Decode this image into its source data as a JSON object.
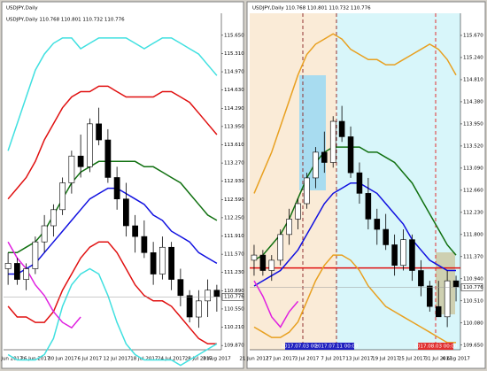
{
  "chart_data": [
    {
      "type": "candlestick",
      "title": "USDJPY,Daily",
      "info": "USDJPY,Daily  110.768 110.801 110.732 110.776",
      "categories": [
        "20 Jun 2017",
        null,
        null,
        "26 Jun 2017",
        null,
        null,
        "30 Jun 2017",
        null,
        null,
        "6 Jul 2017",
        null,
        null,
        "12 Jul 2017",
        null,
        null,
        "18 Jul 2017",
        null,
        null,
        "24 Jul 2017",
        null,
        null,
        "28 Jul 2017",
        null,
        "3 Aug 2017"
      ],
      "open": [
        111.3,
        111.4,
        111.1,
        111.3,
        111.8,
        112.1,
        112.4,
        112.9,
        113.4,
        113.2,
        114.0,
        113.7,
        113.0,
        112.6,
        112.1,
        111.9,
        111.6,
        111.2,
        111.7,
        111.1,
        110.8,
        110.4,
        110.7,
        110.9
      ],
      "high": [
        111.6,
        111.5,
        111.4,
        111.9,
        112.3,
        112.5,
        113.0,
        113.5,
        113.8,
        114.1,
        114.3,
        113.9,
        113.2,
        112.9,
        112.3,
        112.2,
        111.8,
        111.9,
        111.8,
        111.3,
        110.9,
        110.9,
        111.1,
        111.0
      ],
      "low": [
        111.0,
        111.0,
        110.9,
        111.2,
        111.6,
        111.9,
        112.3,
        112.7,
        113.0,
        113.1,
        113.6,
        112.9,
        112.4,
        111.9,
        111.6,
        111.5,
        111.0,
        111.1,
        110.9,
        110.6,
        110.3,
        110.2,
        110.4,
        110.5
      ],
      "close": [
        111.4,
        111.1,
        111.3,
        111.8,
        112.1,
        112.4,
        112.9,
        113.4,
        113.2,
        114.0,
        113.7,
        113.0,
        112.6,
        112.1,
        111.9,
        111.6,
        111.2,
        111.7,
        111.1,
        110.8,
        110.4,
        110.7,
        110.9,
        110.78
      ],
      "series": [
        {
          "color": "#40e0e0",
          "values": [
            113.5,
            114.0,
            114.5,
            115.0,
            115.3,
            115.5,
            115.6,
            115.6,
            115.4,
            115.5,
            115.6,
            115.6,
            115.6,
            115.6,
            115.5,
            115.4,
            115.5,
            115.6,
            115.6,
            115.5,
            115.4,
            115.3,
            115.1,
            114.9
          ]
        },
        {
          "color": "#e01010",
          "values": [
            112.6,
            112.8,
            113.0,
            113.3,
            113.7,
            114.0,
            114.3,
            114.5,
            114.6,
            114.6,
            114.7,
            114.7,
            114.6,
            114.5,
            114.5,
            114.5,
            114.5,
            114.6,
            114.6,
            114.5,
            114.4,
            114.2,
            114.0,
            113.8
          ]
        },
        {
          "color": "#107010",
          "values": [
            111.6,
            111.6,
            111.7,
            111.8,
            112.0,
            112.3,
            112.6,
            112.9,
            113.1,
            113.2,
            113.3,
            113.3,
            113.3,
            113.3,
            113.3,
            113.2,
            113.2,
            113.1,
            113.0,
            112.9,
            112.7,
            112.5,
            112.3,
            112.2
          ]
        },
        {
          "color": "#1010e0",
          "values": [
            111.2,
            111.2,
            111.3,
            111.4,
            111.6,
            111.8,
            112.0,
            112.2,
            112.4,
            112.6,
            112.7,
            112.8,
            112.8,
            112.7,
            112.6,
            112.5,
            112.3,
            112.2,
            112.0,
            111.9,
            111.8,
            111.6,
            111.5,
            111.4
          ]
        },
        {
          "color": "#e01010",
          "values": [
            110.6,
            110.4,
            110.4,
            110.3,
            110.3,
            110.5,
            110.9,
            111.2,
            111.5,
            111.7,
            111.8,
            111.8,
            111.6,
            111.3,
            111.0,
            110.8,
            110.7,
            110.7,
            110.6,
            110.4,
            110.2,
            110.0,
            109.9,
            109.9
          ]
        },
        {
          "color": "#40e0e0",
          "values": [
            109.7,
            109.6,
            109.6,
            109.6,
            109.7,
            110.0,
            110.6,
            111.0,
            111.2,
            111.3,
            111.2,
            110.8,
            110.3,
            109.9,
            109.7,
            109.6,
            109.6,
            109.6,
            109.6,
            109.5,
            109.6,
            109.7,
            109.8,
            109.9
          ]
        },
        {
          "color": "#e020e0",
          "values": [
            111.8,
            111.5,
            111.3,
            111.0,
            110.8,
            110.5,
            110.3,
            110.2,
            110.4,
            null,
            null,
            null,
            null,
            null,
            null,
            null,
            null,
            null,
            null,
            null,
            null,
            null,
            null,
            null
          ]
        }
      ],
      "ylim": [
        109.79,
        116.06
      ],
      "yticks": [
        {
          "value": 115.65,
          "label": "115.650"
        },
        {
          "value": 115.31,
          "label": "115.310"
        },
        {
          "value": 114.97,
          "label": "114.970"
        },
        {
          "value": 114.63,
          "label": "114.630"
        },
        {
          "value": 114.29,
          "label": "114.290"
        },
        {
          "value": 113.95,
          "label": "113.950"
        },
        {
          "value": 113.61,
          "label": "113.610"
        },
        {
          "value": 113.27,
          "label": "113.270"
        },
        {
          "value": 112.93,
          "label": "112.930"
        },
        {
          "value": 112.59,
          "label": "112.590"
        },
        {
          "value": 112.25,
          "label": "112.250"
        },
        {
          "value": 111.91,
          "label": "111.910"
        },
        {
          "value": 111.57,
          "label": "111.570"
        },
        {
          "value": 111.23,
          "label": "111.230"
        },
        {
          "value": 110.89,
          "label": "110.890"
        },
        {
          "value": 110.55,
          "label": "110.550"
        },
        {
          "value": 110.21,
          "label": "110.210"
        },
        {
          "value": 109.87,
          "label": "109.870"
        }
      ],
      "price_marker": 110.776
    },
    {
      "type": "candlestick",
      "title": "USDJPY,Daily  110.768 110.801 110.732 110.776",
      "categories": [
        "21 Jun 2017",
        null,
        null,
        "27 Jun 2017",
        null,
        null,
        "3 Jul 2017",
        null,
        null,
        "7 Jul 2017",
        null,
        null,
        "13 Jul 2017",
        null,
        null,
        "19 Jul 2017",
        null,
        null,
        "25 Jul 2017",
        null,
        null,
        "31 Jul 2017",
        null,
        "4 Aug 2017"
      ],
      "open": [
        111.3,
        111.4,
        111.1,
        111.3,
        111.8,
        112.1,
        112.4,
        112.9,
        113.4,
        113.2,
        114.0,
        113.7,
        113.0,
        112.6,
        112.1,
        111.9,
        111.6,
        111.2,
        111.7,
        111.1,
        110.8,
        110.4,
        110.2,
        110.9
      ],
      "high": [
        111.6,
        111.5,
        111.4,
        111.9,
        112.3,
        112.5,
        113.0,
        113.5,
        113.8,
        114.1,
        114.3,
        113.9,
        113.2,
        112.9,
        112.3,
        112.2,
        111.8,
        111.9,
        111.8,
        111.3,
        110.9,
        110.9,
        111.1,
        111.0
      ],
      "low": [
        111.0,
        111.0,
        110.9,
        111.2,
        111.6,
        111.9,
        112.3,
        112.7,
        113.0,
        113.1,
        113.6,
        112.9,
        112.4,
        111.9,
        111.6,
        111.5,
        111.0,
        111.1,
        110.9,
        110.6,
        110.3,
        110.2,
        110.0,
        110.5
      ],
      "close": [
        111.4,
        111.1,
        111.3,
        111.8,
        112.1,
        112.4,
        112.9,
        113.4,
        113.2,
        114.0,
        113.7,
        113.0,
        112.6,
        112.1,
        111.9,
        111.6,
        111.2,
        111.7,
        111.1,
        110.8,
        110.4,
        110.2,
        110.9,
        110.78
      ],
      "series": [
        {
          "color": "#e8a020",
          "values": [
            112.6,
            113.0,
            113.4,
            113.9,
            114.4,
            114.9,
            115.3,
            115.5,
            115.6,
            115.7,
            115.6,
            115.4,
            115.3,
            115.2,
            115.2,
            115.1,
            115.1,
            115.2,
            115.3,
            115.4,
            115.5,
            115.4,
            115.2,
            114.9
          ]
        },
        {
          "color": "#107010",
          "values": [
            111.3,
            111.4,
            111.6,
            111.8,
            112.1,
            112.5,
            112.9,
            113.2,
            113.4,
            113.5,
            113.5,
            113.5,
            113.5,
            113.4,
            113.4,
            113.3,
            113.2,
            113.0,
            112.8,
            112.5,
            112.2,
            111.9,
            111.6,
            111.4
          ]
        },
        {
          "color": "#1010e0",
          "values": [
            110.8,
            110.9,
            111.0,
            111.1,
            111.3,
            111.5,
            111.8,
            112.1,
            112.4,
            112.6,
            112.7,
            112.8,
            112.8,
            112.7,
            112.6,
            112.4,
            112.2,
            112.0,
            111.7,
            111.5,
            111.3,
            111.2,
            111.1,
            111.1
          ]
        },
        {
          "color": "#e8a020",
          "values": [
            110.0,
            109.9,
            109.8,
            109.8,
            109.9,
            110.1,
            110.5,
            110.9,
            111.2,
            111.4,
            111.4,
            111.3,
            111.1,
            110.8,
            110.6,
            110.4,
            110.3,
            110.2,
            110.1,
            110.0,
            109.9,
            109.8,
            109.7,
            109.7
          ]
        },
        {
          "color": "#e020e0",
          "values": [
            110.9,
            110.6,
            110.2,
            110.0,
            110.3,
            110.5,
            null,
            null,
            null,
            null,
            null,
            null,
            null,
            null,
            null,
            null,
            null,
            null,
            null,
            null,
            null,
            null,
            null,
            null
          ]
        }
      ],
      "ylim": [
        109.56,
        116.1
      ],
      "yticks": [
        {
          "value": 115.67,
          "label": "115.670"
        },
        {
          "value": 115.24,
          "label": "115.240"
        },
        {
          "value": 114.81,
          "label": "114.810"
        },
        {
          "value": 114.38,
          "label": "114.380"
        },
        {
          "value": 113.95,
          "label": "113.950"
        },
        {
          "value": 113.52,
          "label": "113.520"
        },
        {
          "value": 113.09,
          "label": "113.090"
        },
        {
          "value": 112.66,
          "label": "112.660"
        },
        {
          "value": 112.23,
          "label": "112.230"
        },
        {
          "value": 111.8,
          "label": "111.800"
        },
        {
          "value": 111.37,
          "label": "111.370"
        },
        {
          "value": 110.94,
          "label": "110.940"
        },
        {
          "value": 110.51,
          "label": "110.510"
        },
        {
          "value": 110.08,
          "label": "110.080"
        },
        {
          "value": 109.65,
          "label": "109.650"
        }
      ],
      "price_marker": 110.776,
      "hline": 111.15,
      "markers": [
        "2017.07.03 00:00",
        "2017.07.11 00:00",
        "2017.08.03 00:00"
      ]
    }
  ]
}
